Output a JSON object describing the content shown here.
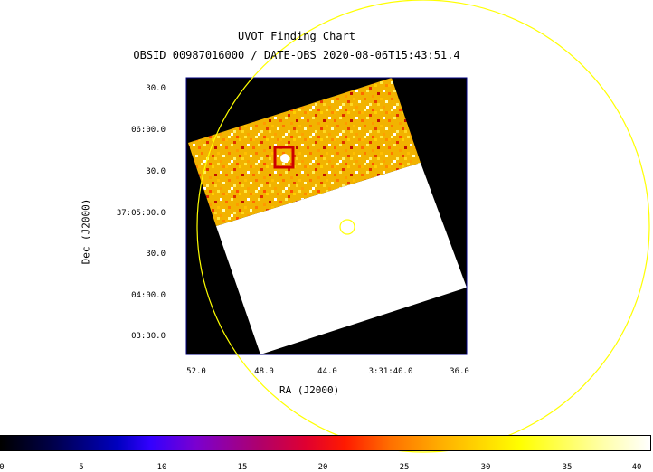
{
  "header": {
    "title": "UVOT Finding Chart",
    "subtitle": "OBSID 00987016000 / DATE-OBS 2020-08-06T15:43:51.4"
  },
  "axes": {
    "x_title": "RA (J2000)",
    "y_title": "Dec (J2000)",
    "x_ticks": [
      "52.0",
      "48.0",
      "44.0",
      "3:31:40.0",
      "36.0"
    ],
    "y_ticks": [
      "30.0",
      "06:00.0",
      "30.0",
      "37:05:00.0",
      "30.0",
      "04:00.0",
      "03:30.0"
    ]
  },
  "colorbar": {
    "ticks": [
      "0",
      "5",
      "10",
      "15",
      "20",
      "25",
      "30",
      "35",
      "40"
    ],
    "range": [
      0,
      40
    ]
  },
  "colors": {
    "frame": "#000080",
    "circle": "#ffff00",
    "source_marker": "#cc0000",
    "image_fill": "#ffffff",
    "background": "#000000"
  }
}
